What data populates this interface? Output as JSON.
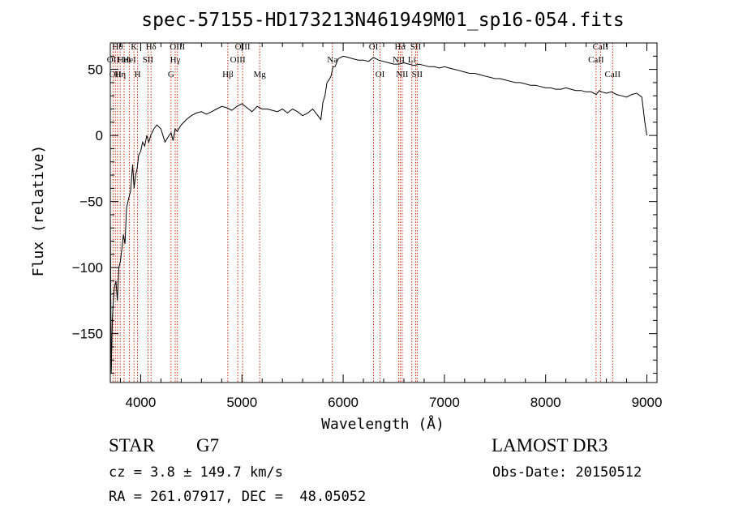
{
  "chart_data": {
    "type": "line",
    "title": "spec-57155-HD173213N461949M01_sp16-054.fits",
    "xlabel": "Wavelength (Å)",
    "ylabel": "Flux (relative)",
    "xlim": [
      3700,
      9100
    ],
    "ylim": [
      -187,
      70
    ],
    "xticks": [
      {
        "value": 4000,
        "label": "4000"
      },
      {
        "value": 5000,
        "label": "5000"
      },
      {
        "value": 6000,
        "label": "6000"
      },
      {
        "value": 7000,
        "label": "7000"
      },
      {
        "value": 8000,
        "label": "8000"
      },
      {
        "value": 9000,
        "label": "9000"
      }
    ],
    "yticks": [
      {
        "value": 50,
        "label": "50"
      },
      {
        "value": 0,
        "label": "0"
      },
      {
        "value": -50,
        "label": "−50"
      },
      {
        "value": -100,
        "label": "−100"
      },
      {
        "value": -150,
        "label": "−150"
      }
    ],
    "series_color": "#000000",
    "line_color": "#cc2200",
    "series": [
      {
        "x": [
          3700,
          3710,
          3720,
          3730,
          3740,
          3755,
          3770,
          3785,
          3800,
          3815,
          3830,
          3845,
          3860,
          3880,
          3900,
          3920,
          3935,
          3950,
          3965,
          3980,
          4000,
          4020,
          4040,
          4060,
          4080,
          4100,
          4130,
          4160,
          4200,
          4240,
          4280,
          4300,
          4320,
          4340,
          4360,
          4400,
          4450,
          4500,
          4550,
          4600,
          4650,
          4700,
          4750,
          4800,
          4850,
          4900,
          4950,
          5000,
          5050,
          5100,
          5150,
          5200,
          5250,
          5300,
          5350,
          5400,
          5450,
          5500,
          5550,
          5600,
          5650,
          5700,
          5750,
          5780,
          5800,
          5820,
          5840,
          5860,
          5880,
          5900,
          5920,
          5950,
          6000,
          6050,
          6100,
          6150,
          6200,
          6250,
          6300,
          6350,
          6400,
          6450,
          6500,
          6550,
          6600,
          6650,
          6700,
          6750,
          6800,
          6850,
          6900,
          6950,
          7000,
          7050,
          7100,
          7150,
          7200,
          7250,
          7300,
          7350,
          7400,
          7450,
          7500,
          7550,
          7600,
          7650,
          7700,
          7750,
          7800,
          7850,
          7900,
          7950,
          8000,
          8050,
          8100,
          8150,
          8200,
          8250,
          8300,
          8350,
          8400,
          8450,
          8500,
          8530,
          8550,
          8600,
          8650,
          8700,
          8750,
          8800,
          8850,
          8900,
          8950,
          8980,
          9000
        ],
        "y": [
          -60,
          -180,
          -140,
          -125,
          -115,
          -110,
          -125,
          -100,
          -95,
          -85,
          -75,
          -82,
          -55,
          -48,
          -42,
          -22,
          -40,
          -30,
          -25,
          -15,
          -12,
          -5,
          -8,
          0,
          -5,
          0,
          5,
          8,
          5,
          -5,
          0,
          2,
          -4,
          5,
          3,
          8,
          12,
          15,
          17,
          18,
          16,
          18,
          20,
          22,
          21,
          19,
          22,
          24,
          21,
          18,
          22,
          20,
          20,
          19,
          18,
          20,
          17,
          20,
          18,
          15,
          17,
          20,
          15,
          12,
          25,
          30,
          40,
          42,
          45,
          52,
          52,
          58,
          60,
          59,
          58,
          57,
          57,
          56,
          59,
          57,
          56,
          55,
          54,
          54,
          55,
          54,
          53,
          54,
          53,
          52,
          52,
          51,
          52,
          51,
          50,
          49,
          48,
          47,
          47,
          46,
          45,
          44,
          43,
          43,
          42,
          41,
          40,
          40,
          39,
          38,
          38,
          37,
          36,
          36,
          35,
          35,
          36,
          35,
          34,
          34,
          33,
          33,
          31,
          34,
          33,
          32,
          33,
          31,
          30,
          29,
          31,
          32,
          29,
          10,
          0
        ]
      }
    ],
    "lines": [
      {
        "wavelength": 3727,
        "label": "OII",
        "row": 2
      },
      {
        "wavelength": 3750,
        "label": "OII",
        "row": 3
      },
      {
        "wavelength": 3771,
        "label": "Hθ",
        "row": 1
      },
      {
        "wavelength": 3798,
        "label": "Hη",
        "row": 3
      },
      {
        "wavelength": 3836,
        "label": "HeI",
        "row": 2
      },
      {
        "wavelength": 3889,
        "label": "HeI",
        "row": 2
      },
      {
        "wavelength": 3934,
        "label": "K",
        "row": 1
      },
      {
        "wavelength": 3969,
        "label": "H",
        "row": 3
      },
      {
        "wavelength": 4072,
        "label": "SII",
        "row": 2
      },
      {
        "wavelength": 4102,
        "label": "Hδ",
        "row": 1
      },
      {
        "wavelength": 4300,
        "label": "G",
        "row": 3
      },
      {
        "wavelength": 4341,
        "label": "Hγ",
        "row": 2
      },
      {
        "wavelength": 4363,
        "label": "OIII",
        "row": 1
      },
      {
        "wavelength": 4861,
        "label": "Hβ",
        "row": 3
      },
      {
        "wavelength": 4959,
        "label": "OIII",
        "row": 2
      },
      {
        "wavelength": 5007,
        "label": "OIII",
        "row": 1
      },
      {
        "wavelength": 5175,
        "label": "Mg",
        "row": 3
      },
      {
        "wavelength": 5893,
        "label": "Na",
        "row": 2
      },
      {
        "wavelength": 6300,
        "label": "OI",
        "row": 1
      },
      {
        "wavelength": 6364,
        "label": "OI",
        "row": 3
      },
      {
        "wavelength": 6548,
        "label": "NII",
        "row": 2
      },
      {
        "wavelength": 6563,
        "label": "Hα",
        "row": 1
      },
      {
        "wavelength": 6583,
        "label": "NII",
        "row": 3
      },
      {
        "wavelength": 6678,
        "label": "Li",
        "row": 2
      },
      {
        "wavelength": 6716,
        "label": "SII",
        "row": 1
      },
      {
        "wavelength": 6731,
        "label": "SII",
        "row": 3
      },
      {
        "wavelength": 8498,
        "label": "CaII",
        "row": 2
      },
      {
        "wavelength": 8542,
        "label": "CaII",
        "row": 1
      },
      {
        "wavelength": 8662,
        "label": "CaII",
        "row": 3
      }
    ]
  },
  "info": {
    "object_class": "STAR",
    "subclass": "G7",
    "survey": "LAMOST DR3",
    "redshift": "cz = 3.8 ± 149.7 km/s",
    "obs_date": "Obs-Date: 20150512",
    "coords": "RA = 261.07917, DEC =  48.05052"
  }
}
